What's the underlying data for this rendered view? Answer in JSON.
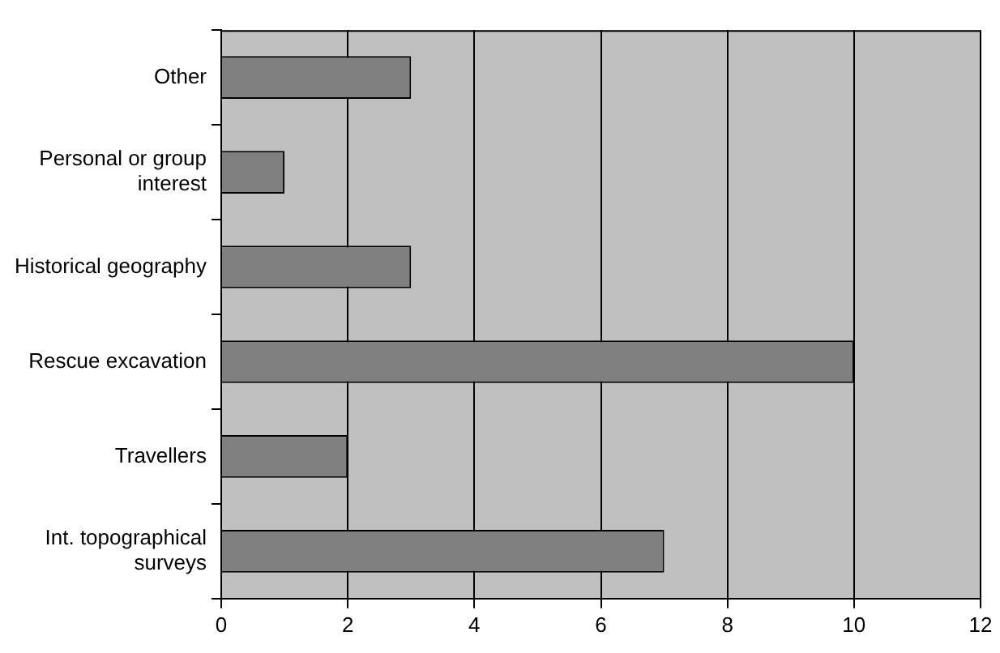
{
  "chart_data": {
    "type": "bar",
    "orientation": "horizontal",
    "categories": [
      "Other",
      "Personal or group interest",
      "Historical geography",
      "Rescue excavation",
      "Travellers",
      "Int. topographical surveys"
    ],
    "values": [
      3,
      1,
      3,
      10,
      2,
      7
    ],
    "color": "#808080",
    "xlim": [
      0,
      12
    ],
    "xticks": [
      0,
      2,
      4,
      6,
      8,
      10,
      12
    ],
    "grid": "x",
    "legend": false
  }
}
